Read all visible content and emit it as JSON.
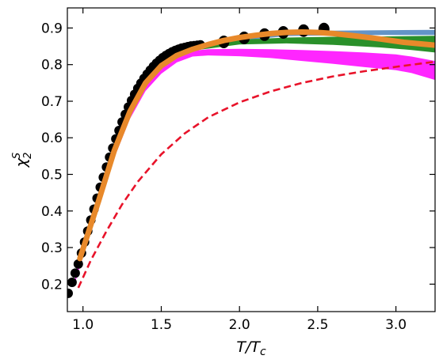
{
  "chart_data": {
    "type": "line",
    "xlabel": "T/T_c",
    "ylabel": "χ_2^S",
    "xlim": [
      0.9,
      3.25
    ],
    "ylim": [
      0.125,
      0.955
    ],
    "xticks": [
      1.0,
      1.5,
      2.0,
      2.5,
      3.0
    ],
    "xtick_labels": [
      "1.0",
      "1.5",
      "2.0",
      "2.5",
      "3.0"
    ],
    "yticks": [
      0.2,
      0.3,
      0.4,
      0.5,
      0.6,
      0.7,
      0.8,
      0.9
    ],
    "ytick_labels": [
      "0.2",
      "0.3",
      "0.4",
      "0.5",
      "0.6",
      "0.7",
      "0.8",
      "0.9"
    ],
    "grid": false,
    "bands": [
      {
        "color": "#5b8ec4",
        "x": [
          1.7,
          2.0,
          2.3,
          2.6,
          2.9,
          3.25
        ],
        "lower": [
          0.842,
          0.865,
          0.878,
          0.88,
          0.881,
          0.881
        ],
        "upper": [
          0.852,
          0.876,
          0.889,
          0.893,
          0.894,
          0.895
        ]
      },
      {
        "color": "#1f8a1f",
        "x": [
          1.7,
          2.0,
          2.3,
          2.6,
          2.9,
          3.1,
          3.25
        ],
        "lower": [
          0.838,
          0.855,
          0.858,
          0.854,
          0.847,
          0.84,
          0.833
        ],
        "upper": [
          0.848,
          0.868,
          0.874,
          0.876,
          0.877,
          0.878,
          0.879
        ]
      },
      {
        "color": "#ff1aff",
        "x": [
          0.95,
          1.0,
          1.1,
          1.2,
          1.3,
          1.4,
          1.5,
          1.6,
          1.7,
          1.8,
          2.0,
          2.2,
          2.4,
          2.6,
          2.8,
          3.0,
          3.1,
          3.25
        ],
        "lower": [
          0.205,
          0.275,
          0.41,
          0.545,
          0.652,
          0.728,
          0.775,
          0.806,
          0.822,
          0.825,
          0.823,
          0.818,
          0.81,
          0.802,
          0.793,
          0.785,
          0.777,
          0.758
        ],
        "upper": [
          0.23,
          0.3,
          0.432,
          0.565,
          0.67,
          0.745,
          0.792,
          0.822,
          0.838,
          0.842,
          0.843,
          0.842,
          0.84,
          0.837,
          0.833,
          0.828,
          0.822,
          0.81
        ]
      }
    ],
    "series": [
      {
        "color": "#e8892a",
        "x": [
          0.98,
          1.1,
          1.2,
          1.3,
          1.4,
          1.5,
          1.6,
          1.7,
          1.8,
          1.9,
          2.0,
          2.1,
          2.2,
          2.3,
          2.4,
          2.5,
          2.6,
          2.75,
          2.9,
          3.05,
          3.25
        ],
        "y": [
          0.27,
          0.428,
          0.565,
          0.672,
          0.75,
          0.797,
          0.825,
          0.842,
          0.855,
          0.866,
          0.874,
          0.88,
          0.885,
          0.888,
          0.889,
          0.888,
          0.885,
          0.878,
          0.87,
          0.861,
          0.853
        ]
      },
      {
        "color": "#e8132a",
        "dashed": true,
        "x": [
          0.97,
          1.05,
          1.15,
          1.25,
          1.35,
          1.5,
          1.65,
          1.8,
          2.0,
          2.2,
          2.4,
          2.6,
          2.8,
          3.0,
          3.25
        ],
        "y": [
          0.19,
          0.265,
          0.345,
          0.418,
          0.48,
          0.555,
          0.612,
          0.656,
          0.697,
          0.727,
          0.75,
          0.768,
          0.782,
          0.794,
          0.808
        ]
      }
    ],
    "points": {
      "color": "#000000",
      "dense_x": [
        0.905,
        0.93,
        0.95,
        0.97,
        0.99,
        1.01,
        1.03,
        1.05,
        1.07,
        1.09,
        1.11,
        1.13,
        1.15,
        1.17,
        1.19,
        1.21,
        1.23,
        1.25,
        1.27,
        1.29,
        1.31,
        1.33,
        1.35,
        1.37,
        1.39,
        1.41,
        1.43,
        1.45,
        1.47,
        1.49,
        1.51,
        1.53,
        1.55,
        1.57,
        1.59,
        1.61,
        1.63,
        1.65,
        1.67,
        1.69,
        1.71,
        1.73,
        1.75
      ],
      "dense_y": [
        0.175,
        0.205,
        0.23,
        0.255,
        0.285,
        0.315,
        0.345,
        0.375,
        0.405,
        0.435,
        0.465,
        0.492,
        0.52,
        0.547,
        0.572,
        0.597,
        0.62,
        0.643,
        0.664,
        0.684,
        0.702,
        0.719,
        0.735,
        0.749,
        0.762,
        0.774,
        0.785,
        0.795,
        0.804,
        0.812,
        0.819,
        0.825,
        0.83,
        0.835,
        0.839,
        0.842,
        0.845,
        0.847,
        0.849,
        0.851,
        0.852,
        0.853,
        0.854
      ],
      "x": [
        1.9,
        2.03,
        2.16,
        2.28,
        2.41,
        2.54
      ],
      "y": [
        0.862,
        0.873,
        0.882,
        0.888,
        0.893,
        0.897
      ]
    }
  }
}
